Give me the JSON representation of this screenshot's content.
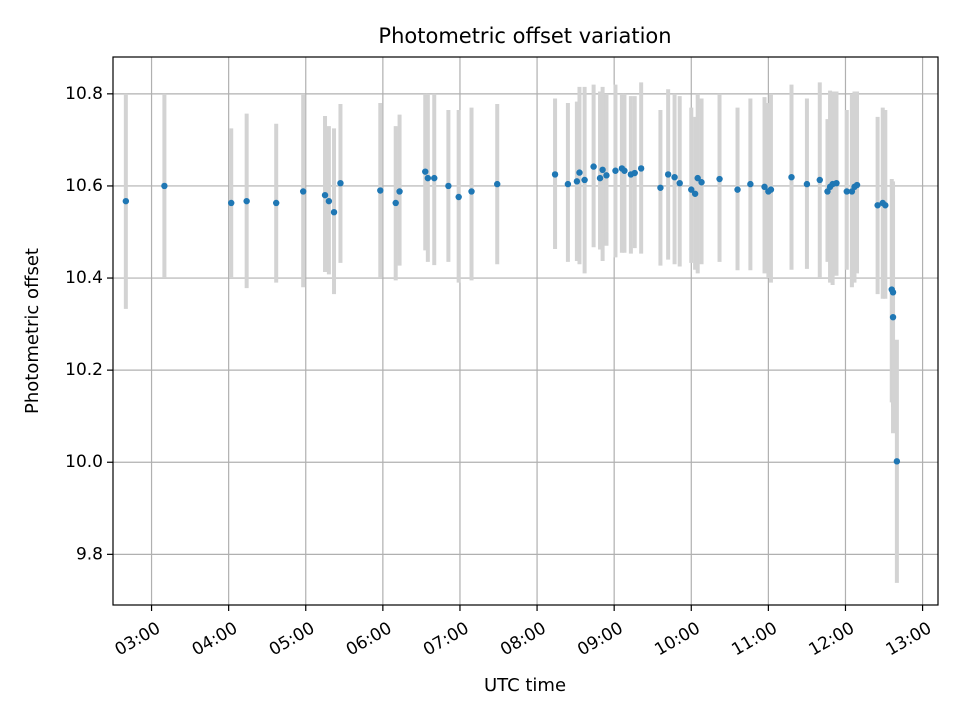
{
  "chart_data": {
    "type": "scatter",
    "title": "Photometric offset variation",
    "xlabel": "UTC time",
    "ylabel": "Photometric offset",
    "x_unit": "UTC time (HH:MM)",
    "xlim": [
      "02:30",
      "13:12"
    ],
    "ylim": [
      9.69,
      10.88
    ],
    "x_ticks": [
      "03:00",
      "04:00",
      "05:00",
      "06:00",
      "07:00",
      "08:00",
      "09:00",
      "10:00",
      "11:00",
      "12:00",
      "13:00"
    ],
    "y_ticks": [
      9.8,
      10.0,
      10.2,
      10.4,
      10.6,
      10.8
    ],
    "y_tick_labels": [
      "9.8",
      "10.0",
      "10.2",
      "10.4",
      "10.6",
      "10.8"
    ],
    "grid": true,
    "colors": {
      "points": "#1f77b4",
      "error_bars": "#d3d3d3",
      "grid": "#b0b0b0"
    },
    "series": [
      {
        "marker": "point",
        "error_bars": "vertical",
        "x": [
          "02:40",
          "03:10",
          "04:02",
          "04:14",
          "04:37",
          "04:58",
          "05:15",
          "05:18",
          "05:22",
          "05:27",
          "05:58",
          "06:10",
          "06:13",
          "06:33",
          "06:35",
          "06:40",
          "06:51",
          "06:59",
          "07:09",
          "07:29",
          "08:14",
          "08:24",
          "08:31",
          "08:33",
          "08:37",
          "08:44",
          "08:49",
          "08:51",
          "08:54",
          "09:01",
          "09:06",
          "09:08",
          "09:13",
          "09:16",
          "09:21",
          "09:36",
          "09:42",
          "09:47",
          "09:51",
          "10:00",
          "10:03",
          "10:05",
          "10:08",
          "10:22",
          "10:36",
          "10:46",
          "10:57",
          "11:00",
          "11:02",
          "11:18",
          "11:30",
          "11:40",
          "11:46",
          "11:48",
          "11:50",
          "11:53",
          "12:01",
          "12:05",
          "12:07",
          "12:09",
          "12:25",
          "12:29",
          "12:31",
          "12:36",
          "12:37",
          "12:37",
          "12:40"
        ],
        "y": [
          10.567,
          10.6,
          10.563,
          10.567,
          10.563,
          10.588,
          10.58,
          10.567,
          10.543,
          10.606,
          10.59,
          10.563,
          10.588,
          10.631,
          10.617,
          10.617,
          10.6,
          10.576,
          10.588,
          10.604,
          10.625,
          10.604,
          10.61,
          10.629,
          10.613,
          10.642,
          10.617,
          10.635,
          10.623,
          10.633,
          10.638,
          10.633,
          10.625,
          10.628,
          10.638,
          10.596,
          10.625,
          10.619,
          10.606,
          10.592,
          10.583,
          10.617,
          10.608,
          10.615,
          10.592,
          10.604,
          10.598,
          10.588,
          10.592,
          10.619,
          10.604,
          10.613,
          10.588,
          10.598,
          10.604,
          10.606,
          10.588,
          10.588,
          10.598,
          10.602,
          10.558,
          10.563,
          10.558,
          10.375,
          10.369,
          10.315,
          10.002
        ],
        "y_low": [
          10.333,
          10.4,
          10.4,
          10.378,
          10.39,
          10.38,
          10.413,
          10.408,
          10.365,
          10.433,
          10.4,
          10.395,
          10.427,
          10.46,
          10.435,
          10.428,
          10.435,
          10.39,
          10.395,
          10.43,
          10.463,
          10.435,
          10.437,
          10.43,
          10.41,
          10.467,
          10.462,
          10.437,
          10.47,
          10.445,
          10.455,
          10.455,
          10.453,
          10.465,
          10.453,
          10.427,
          10.44,
          10.43,
          10.425,
          10.433,
          10.418,
          10.41,
          10.43,
          10.435,
          10.417,
          10.417,
          10.41,
          10.4,
          10.39,
          10.418,
          10.42,
          10.4,
          10.435,
          10.39,
          10.385,
          10.405,
          10.418,
          10.38,
          10.39,
          10.41,
          10.365,
          10.355,
          10.355,
          10.13,
          10.12,
          10.063,
          9.738
        ],
        "y_high": [
          10.8,
          10.8,
          10.725,
          10.757,
          10.735,
          10.8,
          10.752,
          10.73,
          10.725,
          10.778,
          10.78,
          10.73,
          10.755,
          10.8,
          10.8,
          10.8,
          10.765,
          10.765,
          10.77,
          10.778,
          10.79,
          10.78,
          10.783,
          10.815,
          10.815,
          10.82,
          10.805,
          10.815,
          10.8,
          10.82,
          10.8,
          10.8,
          10.795,
          10.795,
          10.825,
          10.765,
          10.81,
          10.8,
          10.795,
          10.77,
          10.75,
          10.8,
          10.79,
          10.8,
          10.77,
          10.79,
          10.793,
          10.78,
          10.8,
          10.82,
          10.79,
          10.825,
          10.745,
          10.807,
          10.805,
          10.805,
          10.765,
          10.8,
          10.805,
          10.805,
          10.75,
          10.77,
          10.765,
          10.615,
          10.61,
          10.58,
          10.266
        ]
      }
    ]
  }
}
